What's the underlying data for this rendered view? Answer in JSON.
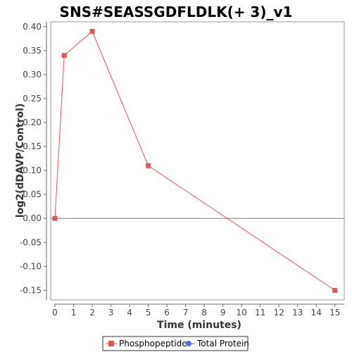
{
  "chart_data": {
    "type": "line",
    "title": "SNS#SEASSGDFLDLK(+ 3)_v1",
    "xlabel": "Time (minutes)",
    "ylabel": "log2(dDAVP/Control)",
    "xlim": [
      0,
      15.5
    ],
    "ylim": [
      -0.17,
      0.41
    ],
    "x_ticks": [
      "0",
      "1",
      "2",
      "3",
      "4",
      "5",
      "6",
      "7",
      "8",
      "9",
      "10",
      "11",
      "12",
      "13",
      "14",
      "15"
    ],
    "y_ticks": [
      "0.40",
      "0.35",
      "0.30",
      "0.25",
      "0.20",
      "0.15",
      "0.10",
      "0.05",
      "0.00",
      "-0.05",
      "-0.10",
      "-0.15"
    ],
    "zero_line": true,
    "grid": false,
    "legend_placement": "bottom",
    "series": [
      {
        "name": "Phosphopeptide",
        "color": "#e05555",
        "marker": "square",
        "x": [
          0,
          0.5,
          2,
          5,
          15
        ],
        "y": [
          0.0,
          0.34,
          0.39,
          0.11,
          -0.15
        ]
      },
      {
        "name": "Total Protein",
        "color": "#5566e8",
        "marker": "circle",
        "x": [],
        "y": []
      }
    ]
  }
}
